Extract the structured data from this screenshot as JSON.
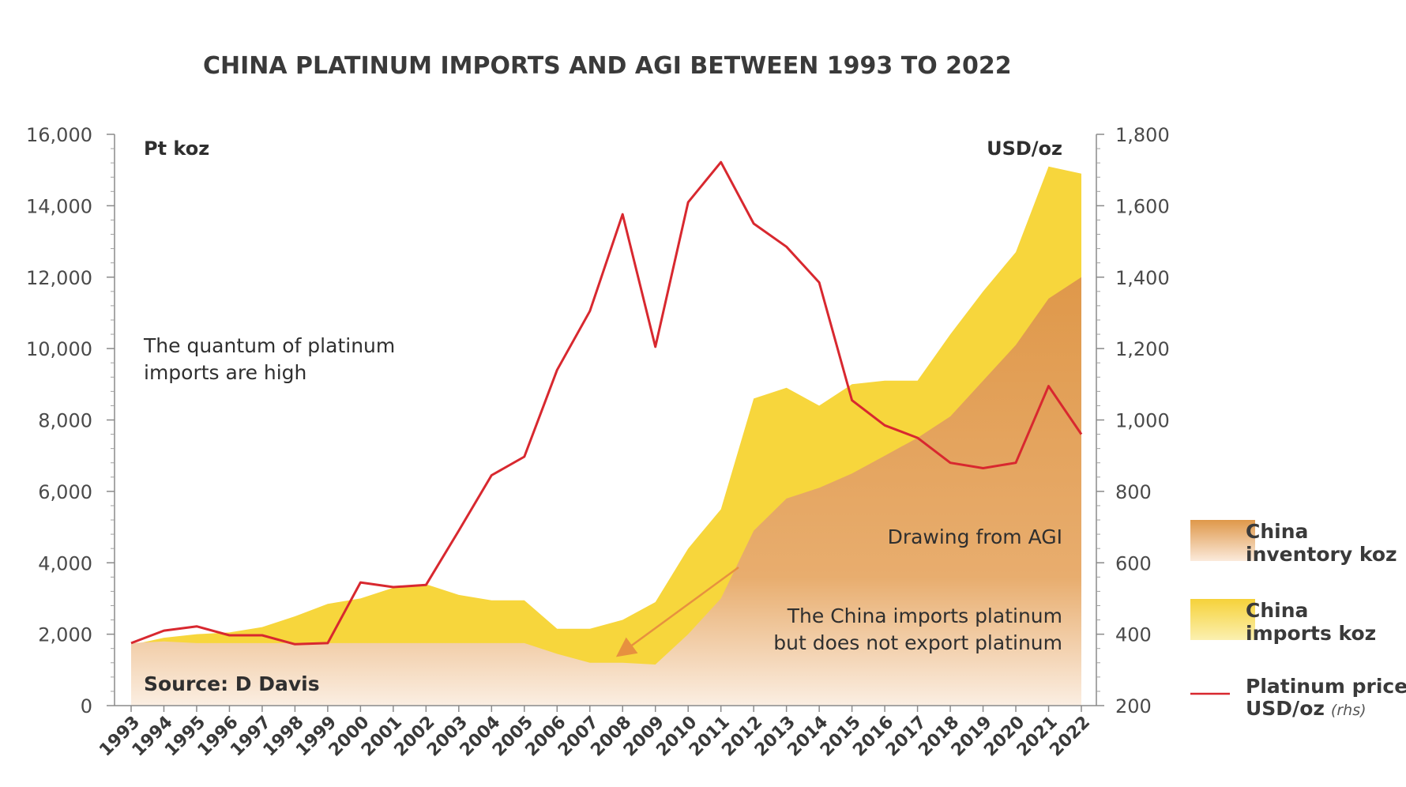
{
  "chart_data": {
    "type": "area",
    "title": "CHINA PLATINUM IMPORTS AND AGI BETWEEN 1993 TO 2022",
    "ylabel": "Pt koz",
    "y2label": "USD/oz",
    "ylim": [
      0,
      16000
    ],
    "y2lim": [
      200,
      1800
    ],
    "yticks": [
      "0",
      "2,000",
      "4,000",
      "6,000",
      "8,000",
      "10,000",
      "12,000",
      "14,000",
      "16,000"
    ],
    "y2ticks": [
      "200",
      "400",
      "600",
      "800",
      "1,000",
      "1,200",
      "1,400",
      "1,600",
      "1,800"
    ],
    "categories": [
      "1993",
      "1994",
      "1995",
      "1996",
      "1997",
      "1998",
      "1999",
      "2000",
      "2001",
      "2002",
      "2003",
      "2004",
      "2005",
      "2006",
      "2007",
      "2008",
      "2009",
      "2010",
      "2011",
      "2012",
      "2013",
      "2014",
      "2015",
      "2016",
      "2017",
      "2018",
      "2019",
      "2020",
      "2021",
      "2022"
    ],
    "series": [
      {
        "name": "China imports koz",
        "color": "#f7d63c",
        "values": [
          1700,
          1900,
          2000,
          2050,
          2200,
          2500,
          2850,
          3000,
          3300,
          3400,
          3100,
          2950,
          2950,
          2150,
          2150,
          2400,
          2900,
          4400,
          5500,
          8600,
          8900,
          8400,
          9000,
          9100,
          9100,
          10400,
          11600,
          12700,
          15100,
          14900
        ]
      },
      {
        "name": "China inventory koz",
        "color": "#e09a4c",
        "values": [
          1750,
          1800,
          1750,
          1750,
          1750,
          1750,
          1750,
          1750,
          1750,
          1750,
          1750,
          1750,
          1750,
          1450,
          1200,
          1200,
          1150,
          2000,
          3000,
          4900,
          5800,
          6100,
          6500,
          7000,
          7500,
          8100,
          9100,
          10100,
          11400,
          12000
        ]
      },
      {
        "name": "Platinum price USD/oz (rhs)",
        "axis": "right",
        "color": "#d8282f",
        "values": [
          375,
          410,
          422,
          397,
          397,
          372,
          375,
          545,
          532,
          538,
          690,
          845,
          897,
          1140,
          1305,
          1576,
          1205,
          1610,
          1722,
          1550,
          1485,
          1385,
          1055,
          985,
          950,
          880,
          865,
          880,
          1095,
          960
        ]
      }
    ],
    "annotations": [
      "The quantum of platinum",
      "imports are high",
      "Drawing from AGI",
      "The China imports platinum",
      "but does not export platinum",
      "Source: D Davis"
    ],
    "legend": [
      {
        "label1": "China",
        "label2": "inventory koz",
        "label3": ""
      },
      {
        "label1": "China",
        "label2": "imports koz",
        "label3": ""
      },
      {
        "label1": "Platinum price",
        "label2": "USD/oz",
        "label3": "(rhs)"
      }
    ]
  }
}
